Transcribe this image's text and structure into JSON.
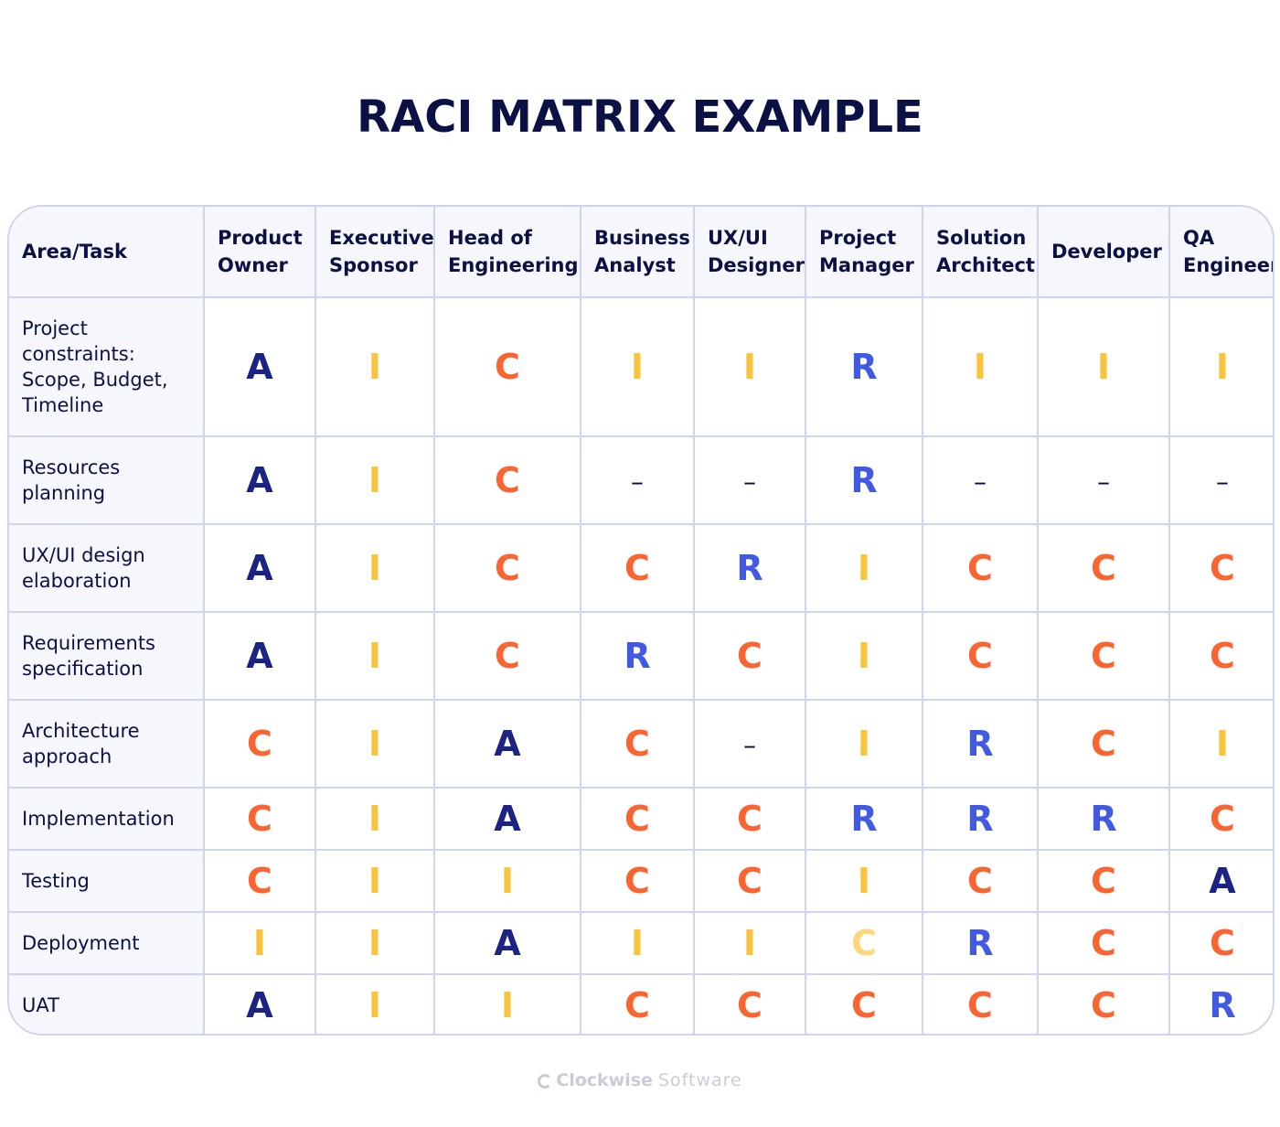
{
  "title": "RACI MATRIX EXAMPLE",
  "colors": {
    "A": "#1b2383",
    "R": "#4259e1",
    "C": "#fa6431",
    "I": "#f9c33e",
    "C_light": "#fcd77c",
    "border": "#cdd5ea",
    "header_bg": "#f6f7fc"
  },
  "columns": [
    "Area/Task",
    "Product Owner",
    "Executive Sponsor",
    "Head of Engineering",
    "Business Analyst",
    "UX/UI Designer",
    "Project Manager",
    "Solution Architect",
    "Developer",
    "QA Engineer"
  ],
  "rows": [
    {
      "task": "Project constraints: Scope, Budget, Timeline",
      "values": [
        "A",
        "I",
        "C",
        "I",
        "I",
        "R",
        "I",
        "I",
        "I"
      ]
    },
    {
      "task": "Resources planning",
      "values": [
        "A",
        "I",
        "C",
        "–",
        "–",
        "R",
        "–",
        "–",
        "–"
      ]
    },
    {
      "task": "UX/UI design elaboration",
      "values": [
        "A",
        "I",
        "C",
        "C",
        "R",
        "I",
        "C",
        "C",
        "C"
      ]
    },
    {
      "task": "Requirements specification",
      "values": [
        "A",
        "I",
        "C",
        "R",
        "C",
        "I",
        "C",
        "C",
        "C"
      ]
    },
    {
      "task": "Architecture approach",
      "values": [
        "C",
        "I",
        "A",
        "C",
        "–",
        "I",
        "R",
        "C",
        "I"
      ]
    },
    {
      "task": "Implementation",
      "values": [
        "C",
        "I",
        "A",
        "C",
        "C",
        "R",
        "R",
        "R",
        "C"
      ]
    },
    {
      "task": "Testing",
      "values": [
        "C",
        "I",
        "I",
        "C",
        "C",
        "I",
        "C",
        "C",
        "A"
      ]
    },
    {
      "task": "Deployment",
      "values": [
        "I",
        "I",
        "A",
        "I",
        "I",
        "C",
        "R",
        "C",
        "C"
      ]
    },
    {
      "task": "UAT",
      "values": [
        "A",
        "I",
        "I",
        "C",
        "C",
        "C",
        "C",
        "C",
        "R"
      ]
    }
  ],
  "highlighted_cells": [
    {
      "row": 7,
      "col": 5,
      "style": "light"
    }
  ],
  "footer": {
    "brand_bold": "Clockwise",
    "brand_light": "Software",
    "icon": "clockwise-logo-icon"
  }
}
